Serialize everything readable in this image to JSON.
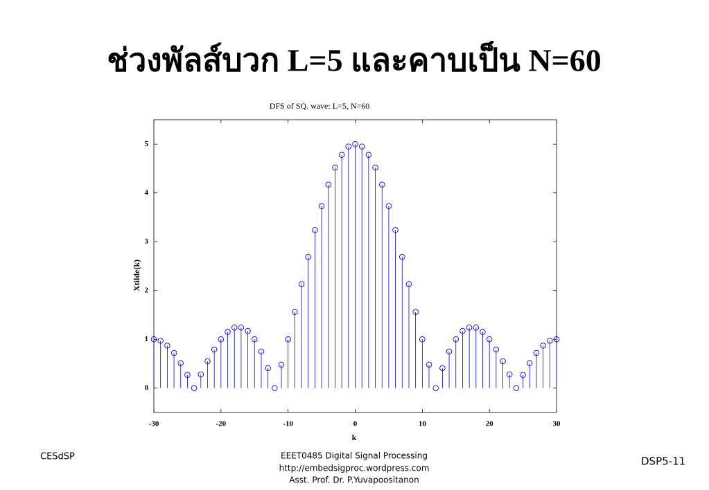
{
  "slide": {
    "title": "ช่วงพัลส์บวก L=5 และคาบเป็น N=60",
    "footer_left": "CESdSP",
    "footer_center": [
      "EEET0485 Digital Signal Processing",
      "http://embedsigproc.wordpress.com",
      "Asst. Prof. Dr. P.Yuvapoositanon"
    ],
    "footer_right": "DSP5-11"
  },
  "chart_data": {
    "type": "stem",
    "title": "DFS of SQ. wave: L=5, N=60",
    "x_label": "k",
    "y_label": "Xtilde(k)",
    "x": [
      -30,
      -29,
      -28,
      -27,
      -26,
      -25,
      -24,
      -23,
      -22,
      -21,
      -20,
      -19,
      -18,
      -17,
      -16,
      -15,
      -14,
      -13,
      -12,
      -11,
      -10,
      -9,
      -8,
      -7,
      -6,
      -5,
      -4,
      -3,
      -2,
      -1,
      0,
      1,
      2,
      3,
      4,
      5,
      6,
      7,
      8,
      9,
      10,
      11,
      12,
      13,
      14,
      15,
      16,
      17,
      18,
      19,
      20,
      21,
      22,
      23,
      24,
      25,
      26,
      27,
      28,
      29,
      30
    ],
    "values": [
      1,
      0.97,
      0.87,
      0.72,
      0.51,
      0.27,
      0,
      0.28,
      0.55,
      0.79,
      1,
      1.15,
      1.24,
      1.24,
      1.17,
      1,
      0.75,
      0.41,
      0,
      0.48,
      1,
      1.56,
      2.13,
      2.69,
      3.24,
      3.73,
      4.17,
      4.52,
      4.78,
      4.95,
      5,
      4.95,
      4.78,
      4.52,
      4.17,
      3.73,
      3.24,
      2.69,
      2.13,
      1.56,
      1,
      0.48,
      0,
      0.41,
      0.75,
      1,
      1.17,
      1.24,
      1.24,
      1.15,
      1,
      0.79,
      0.55,
      0.28,
      0,
      0.27,
      0.51,
      0.72,
      0.87,
      0.97,
      1
    ],
    "color": "#0000ff",
    "xlim": [
      -30,
      30
    ],
    "xticks": [
      -30,
      -20,
      -10,
      0,
      10,
      20,
      30
    ],
    "ylim": [
      -0.5,
      5.5
    ],
    "yticks": [
      0,
      1,
      2,
      3,
      4,
      5
    ]
  }
}
